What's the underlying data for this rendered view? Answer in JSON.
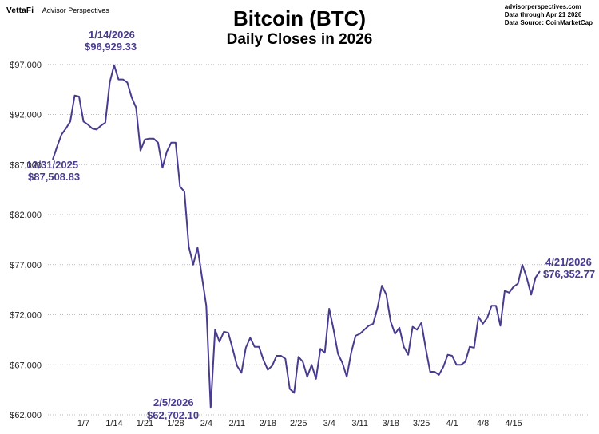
{
  "header": {
    "brand_logo": "VettaFi",
    "brand_sub": "Advisor Perspectives",
    "source_site": "advisorperspectives.com",
    "source_through": "Data through Apr 21 2026",
    "source_data": "Data Source: CoinMarketCap"
  },
  "chart_data": {
    "type": "line",
    "title": "Bitcoin (BTC)",
    "subtitle": "Daily Closes in 2026",
    "ylim": [
      62000,
      98500
    ],
    "y_ticks": [
      62000,
      67000,
      72000,
      77000,
      82000,
      87000,
      92000,
      97000
    ],
    "y_tick_labels": [
      "$62,000",
      "$67,000",
      "$72,000",
      "$77,000",
      "$82,000",
      "$87,000",
      "$92,000",
      "$97,000"
    ],
    "x_tick_labels": [
      "1/7",
      "1/14",
      "1/21",
      "1/28",
      "2/4",
      "2/11",
      "2/18",
      "2/25",
      "3/4",
      "3/11",
      "3/18",
      "3/25",
      "4/1",
      "4/8",
      "4/15"
    ],
    "x_tick_days": [
      7,
      14,
      21,
      28,
      35,
      42,
      49,
      56,
      63,
      70,
      77,
      84,
      91,
      98,
      105
    ],
    "line_color": "#4b3b8f",
    "grid": true,
    "series": [
      {
        "x": [
          0,
          1,
          2,
          3,
          4,
          5,
          6,
          7,
          8,
          9,
          10,
          11,
          12,
          13,
          14,
          15,
          16,
          17,
          18,
          19,
          20,
          21,
          22,
          23,
          24,
          25,
          26,
          27,
          28,
          29,
          30,
          31,
          32,
          33,
          34,
          35,
          36,
          37,
          38,
          39,
          40,
          41,
          42,
          43,
          44,
          45,
          46,
          47,
          48,
          49,
          50,
          51,
          52,
          53,
          54,
          55,
          56,
          57,
          58,
          59,
          60,
          61,
          62,
          63,
          64,
          65,
          66,
          67,
          68,
          69,
          70,
          71,
          72,
          73,
          74,
          75,
          76,
          77,
          78,
          79,
          80,
          81,
          82,
          83,
          84,
          85,
          86,
          87,
          88,
          89,
          90,
          91,
          92,
          93,
          94,
          95,
          96,
          97,
          98,
          99,
          100,
          101,
          102,
          103,
          104,
          105,
          106,
          107,
          108,
          109,
          110,
          111
        ],
        "values": [
          87508.83,
          88800,
          90000,
          90600,
          91300,
          93900,
          93800,
          91300,
          91000,
          90600,
          90500,
          90900,
          91200,
          95200,
          96929.33,
          95500,
          95500,
          95200,
          93700,
          92700,
          88400,
          89500,
          89600,
          89600,
          89200,
          86700,
          88300,
          89200,
          89200,
          84800,
          84300,
          78800,
          77000,
          78700,
          75800,
          72900,
          62702.1,
          70500,
          69300,
          70300,
          70200,
          68600,
          66900,
          66200,
          68700,
          69700,
          68800,
          68800,
          67500,
          66500,
          66900,
          67900,
          67900,
          67600,
          64600,
          64200,
          67800,
          67300,
          65800,
          67000,
          65600,
          68600,
          68200,
          72600,
          70500,
          68100,
          67200,
          65800,
          68200,
          69900,
          70100,
          70500,
          70900,
          71100,
          72700,
          74900,
          74000,
          71300,
          70100,
          70700,
          68800,
          68000,
          70800,
          70500,
          71200,
          68600,
          66300,
          66300,
          66000,
          66800,
          68000,
          67900,
          67000,
          67000,
          67300,
          68800,
          68700,
          71800,
          71100,
          71700,
          72900,
          72900,
          70900,
          74400,
          74200,
          74800,
          75100,
          77000,
          75700,
          74000,
          75700,
          76352.77
        ]
      }
    ],
    "annotations": {
      "start_date": "12/31/2025",
      "start_value": "$87,508.83",
      "high_date": "1/14/2026",
      "high_value": "$96,929.33",
      "low_date": "2/5/2026",
      "low_value": "$62,702.10",
      "end_date": "4/21/2026",
      "end_value": "$76,352.77"
    }
  }
}
